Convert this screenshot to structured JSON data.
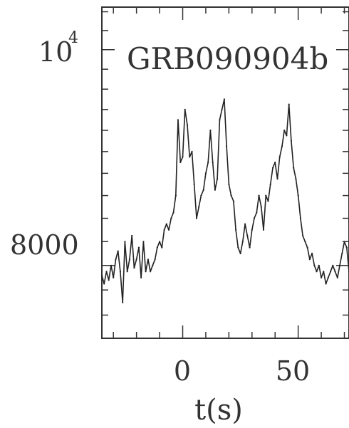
{
  "chart_data": {
    "type": "line",
    "title": "GRB090904b",
    "xlabel": "t(s)",
    "ylabel": "",
    "xlim": [
      -35,
      72
    ],
    "ylim": [
      7420,
      10450
    ],
    "y_scale": "log",
    "x_ticks": [
      {
        "value": 0,
        "label": "0"
      },
      {
        "value": 50,
        "label": "50"
      }
    ],
    "y_ticks": [
      {
        "value": 8000,
        "label": "8000"
      },
      {
        "value": 10000,
        "label": "10",
        "exponent": "4"
      }
    ],
    "series": [
      {
        "name": "",
        "color": "#222222",
        "x": [
          -35,
          -34,
          -33,
          -32,
          -31,
          -30,
          -29,
          -28,
          -27,
          -26,
          -25,
          -24,
          -23,
          -22,
          -21,
          -20,
          -19,
          -18,
          -17,
          -16,
          -15,
          -14,
          -13,
          -12,
          -11,
          -10,
          -9,
          -8,
          -7,
          -6,
          -5,
          -4,
          -3,
          -2,
          -1,
          0,
          1,
          2,
          3,
          4,
          5,
          6,
          7,
          8,
          9,
          10,
          11,
          12,
          13,
          14,
          15,
          16,
          17,
          18,
          19,
          20,
          21,
          22,
          23,
          24,
          25,
          26,
          27,
          28,
          29,
          30,
          31,
          32,
          33,
          34,
          35,
          36,
          37,
          38,
          39,
          40,
          41,
          42,
          43,
          44,
          45,
          46,
          47,
          48,
          49,
          50,
          51,
          52,
          53,
          54,
          55,
          56,
          57,
          58,
          59,
          60,
          61,
          62,
          63,
          64,
          65,
          66,
          67,
          68,
          69,
          70,
          71,
          72
        ],
        "y": [
          7920,
          7850,
          7950,
          7880,
          8000,
          7900,
          8050,
          8120,
          7950,
          7700,
          8200,
          7950,
          8050,
          8250,
          7980,
          8050,
          8150,
          7900,
          8200,
          7950,
          8050,
          7950,
          8000,
          8050,
          8150,
          8200,
          8150,
          8300,
          8350,
          8300,
          8400,
          8450,
          8600,
          9300,
          8900,
          8950,
          9400,
          9250,
          8950,
          9000,
          8700,
          8400,
          8500,
          8600,
          8650,
          8800,
          8900,
          9200,
          8900,
          8650,
          8750,
          9300,
          9400,
          9500,
          9050,
          8700,
          8600,
          8550,
          8300,
          8150,
          8100,
          8200,
          8350,
          8250,
          8150,
          8300,
          8400,
          8450,
          8600,
          8500,
          8300,
          8600,
          8550,
          8700,
          8850,
          8900,
          8750,
          8950,
          9050,
          9200,
          9150,
          9450,
          9100,
          8850,
          8750,
          8600,
          8400,
          8250,
          8200,
          8150,
          8050,
          8100,
          8000,
          7950,
          8000,
          7900,
          7950,
          7850,
          7900,
          7950,
          8000,
          7950,
          7900,
          8000,
          8100,
          8200,
          8150,
          7950
        ]
      }
    ]
  }
}
